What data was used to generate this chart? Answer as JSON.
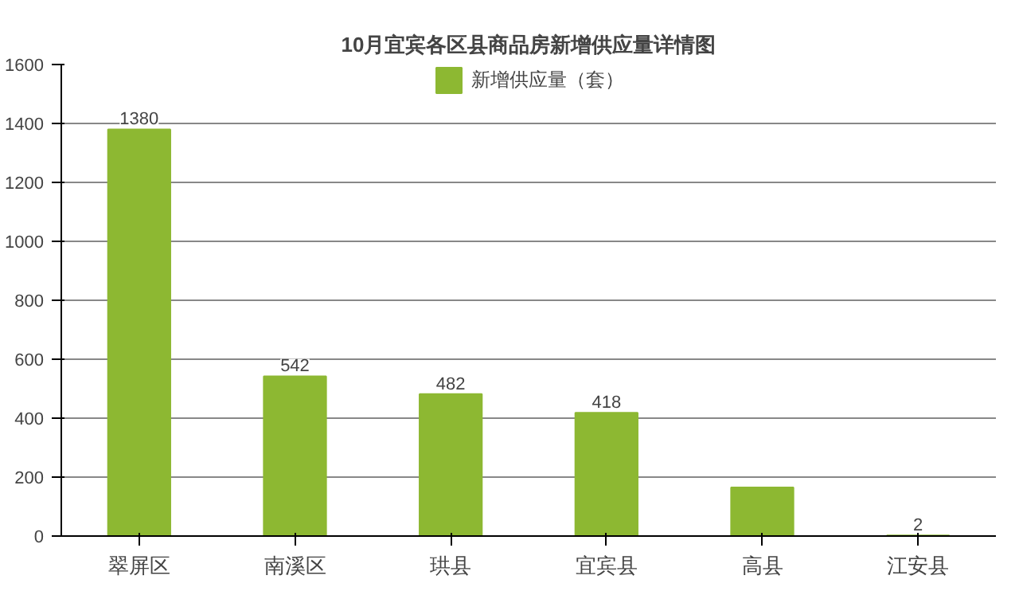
{
  "chart_data": {
    "type": "bar",
    "title": "10月宜宾各区县商品房新增供应量详情图",
    "categories": [
      "翠屏区",
      "南溪区",
      "珙县",
      "宜宾县",
      "高县",
      "江安县"
    ],
    "series": [
      {
        "name": "新增供应量（套）",
        "color": "#8db832",
        "values": [
          1380,
          542,
          482,
          418,
          165,
          2
        ]
      }
    ],
    "value_labels": [
      "1380",
      "542",
      "482",
      "418",
      null,
      "2"
    ],
    "ylim": [
      0,
      1600
    ],
    "yticks": [
      0,
      200,
      400,
      600,
      800,
      1000,
      1200,
      1400,
      1600
    ],
    "grid": "y",
    "legend": "top"
  }
}
